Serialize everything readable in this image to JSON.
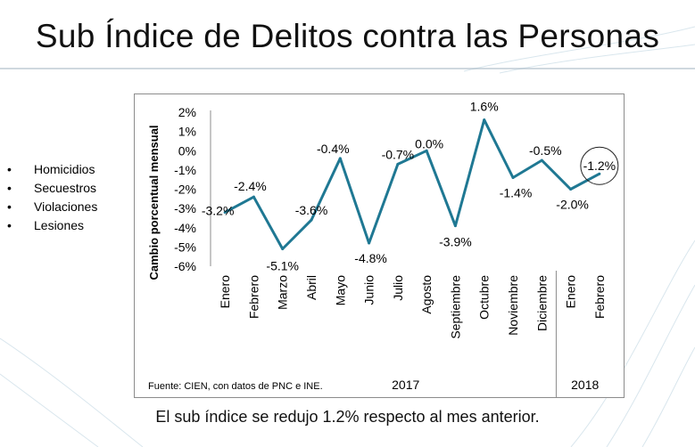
{
  "slide": {
    "title": "Sub Índice de Delitos contra las Personas",
    "bullets": [
      "Homicidios",
      "Secuestros",
      "Violaciones",
      "Lesiones"
    ],
    "caption": "El sub índice se redujo 1.2% respecto al mes anterior."
  },
  "colors": {
    "line": "#1f7893",
    "axis": "#8c8c8c",
    "frame": "#8c8c8c"
  },
  "chart_data": {
    "type": "line",
    "ylabel": "Cambio porcentual mensual",
    "ylim": [
      -6,
      2
    ],
    "yticks": [
      "2%",
      "1%",
      "0%",
      "-1%",
      "-2%",
      "-3%",
      "-4%",
      "-5%",
      "-6%"
    ],
    "categories": [
      "Enero",
      "Febrero",
      "Marzo",
      "Abril",
      "Mayo",
      "Junio",
      "Julio",
      "Agosto",
      "Septiembre",
      "Octubre",
      "Noviembre",
      "Diciembre",
      "Enero",
      "Febrero"
    ],
    "series": [
      {
        "name": "Sub Índice de Delitos contra las Personas",
        "values": [
          -3.2,
          -2.4,
          -5.1,
          -3.6,
          -0.4,
          -4.8,
          -0.7,
          0.0,
          -3.9,
          1.6,
          -1.4,
          -0.5,
          -2.0,
          -1.2
        ],
        "labels": [
          "-3.2%",
          "-2.4%",
          "-5.1%",
          "-3.6%",
          "-0.4%",
          "-4.8%",
          "-0.7%",
          "0.0%",
          "-3.9%",
          "1.6%",
          "-1.4%",
          "-0.5%",
          "-2.0%",
          "-1.2%"
        ]
      }
    ],
    "year_groups": [
      {
        "label": "2017",
        "count": 12
      },
      {
        "label": "2018",
        "count": 2
      }
    ],
    "highlight": "Febrero 2018",
    "source": "Fuente: CIEN, con datos de PNC e INE."
  }
}
